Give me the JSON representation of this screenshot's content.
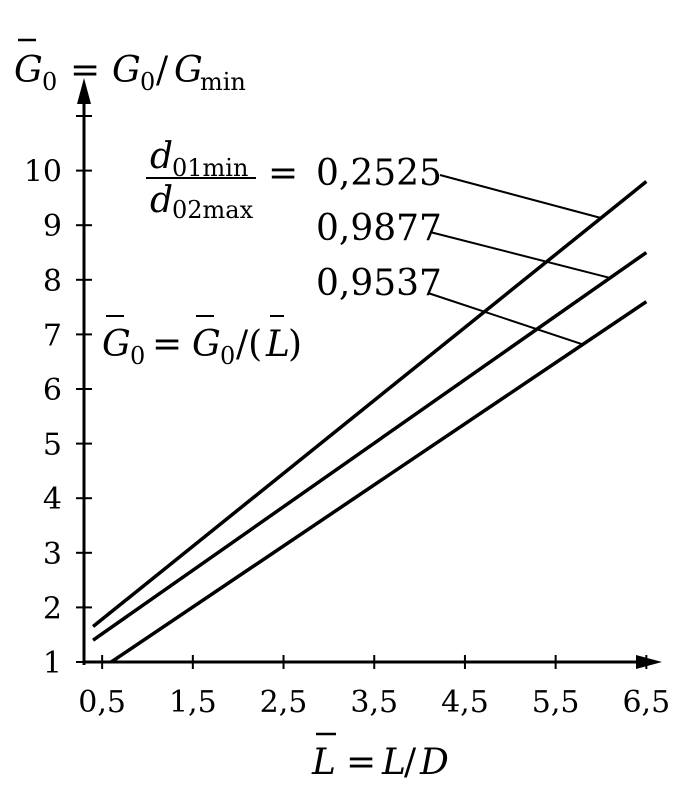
{
  "chart_data": {
    "type": "line",
    "ylabel": "Ḡ₀ = G₀/Gmin",
    "xlabel": "L̄ = L/D",
    "formula": "Ḡ₀ = Ḡ₀/(L̄)",
    "legend_title": "d01min / d02max =",
    "x_ticks": [
      "0,5",
      "1,5",
      "2,5",
      "3,5",
      "4,5",
      "5,5",
      "6,5"
    ],
    "y_ticks": [
      "1",
      "2",
      "3",
      "4",
      "5",
      "6",
      "7",
      "8",
      "9",
      "10"
    ],
    "xlim": [
      0.3,
      6.8
    ],
    "ylim": [
      1,
      11
    ],
    "series": [
      {
        "name": "0,2525",
        "x": [
          0.4,
          6.5
        ],
        "y": [
          1.65,
          9.8
        ],
        "label_at": 6.0
      },
      {
        "name": "0,9877",
        "x": [
          0.4,
          6.5
        ],
        "y": [
          1.4,
          8.5
        ],
        "label_at": 6.1
      },
      {
        "name": "0,9537",
        "x": [
          0.6,
          6.5
        ],
        "y": [
          1.0,
          7.6
        ],
        "label_at": 5.8
      }
    ]
  }
}
